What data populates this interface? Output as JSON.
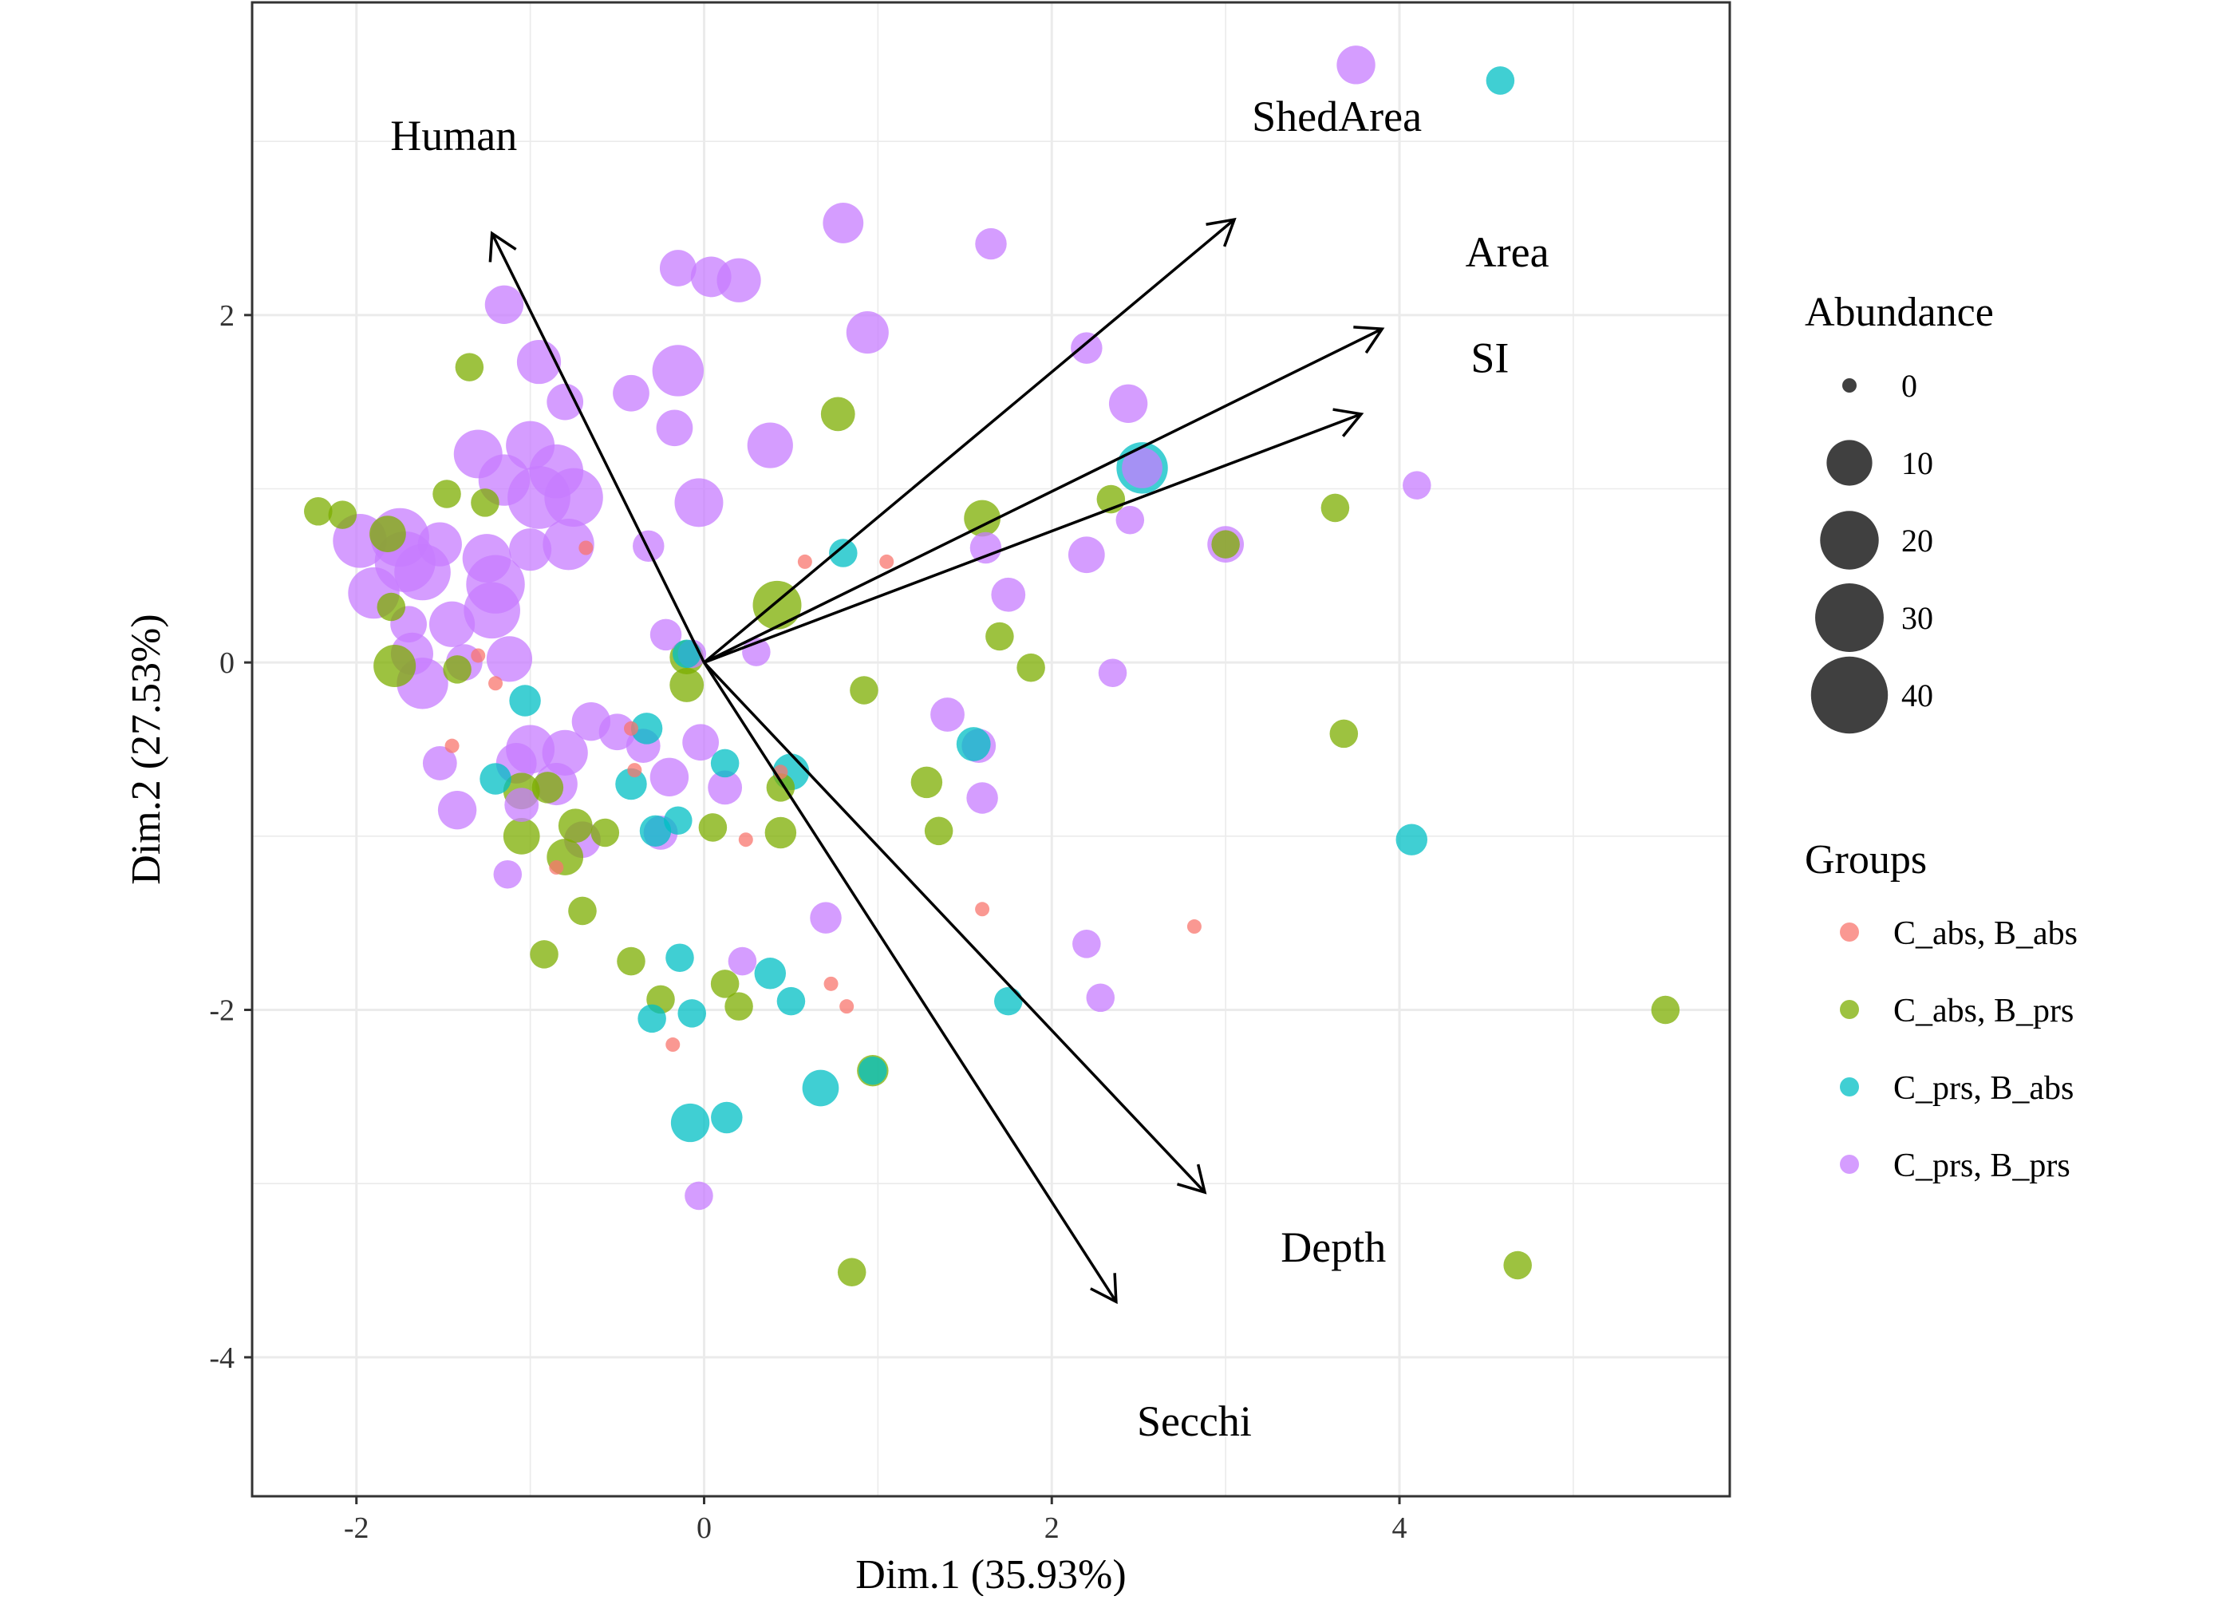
{
  "chart_data": {
    "type": "scatter",
    "subtype": "PCA biplot",
    "title": "",
    "xlabel": "Dim.1 (35.93%)",
    "ylabel": "Dim.2 (27.53%)",
    "xlim": [
      -2.6,
      5.9
    ],
    "ylim": [
      -4.8,
      3.8
    ],
    "x_ticks": [
      -2,
      0,
      2,
      4
    ],
    "y_ticks": [
      -4,
      -2,
      0,
      2
    ],
    "x_tick_labels": [
      "-2",
      "0",
      "2",
      "4"
    ],
    "y_tick_labels": [
      "-4",
      "-2",
      "0",
      "2"
    ],
    "grid": true,
    "legend_position": "right",
    "size_legend": {
      "title": "Abundance",
      "values": [
        0,
        10,
        20,
        30,
        40
      ],
      "labels": [
        "0",
        "10",
        "20",
        "30",
        "40"
      ]
    },
    "color_legend": {
      "title": "Groups",
      "groups": [
        {
          "name": "C_abs, B_abs",
          "color": "#F8766D"
        },
        {
          "name": "C_abs, B_prs",
          "color": "#7CAE00"
        },
        {
          "name": "C_prs, B_abs",
          "color": "#00BFC4"
        },
        {
          "name": "C_prs, B_prs",
          "color": "#C77CFF"
        }
      ]
    },
    "vectors": [
      {
        "label": "Human",
        "x": -1.22,
        "y": 2.47,
        "label_x": -1.44,
        "label_y": 2.95
      },
      {
        "label": "ShedArea",
        "x": 3.05,
        "y": 2.55,
        "label_x": 3.64,
        "label_y": 3.06
      },
      {
        "label": "Area",
        "x": 3.9,
        "y": 1.92,
        "label_x": 4.62,
        "label_y": 2.28
      },
      {
        "label": "SI",
        "x": 3.78,
        "y": 1.43,
        "label_x": 4.52,
        "label_y": 1.67
      },
      {
        "label": "Depth",
        "x": 2.88,
        "y": -3.05,
        "label_x": 3.62,
        "label_y": -3.45
      },
      {
        "label": "Secchi",
        "x": 2.37,
        "y": -3.68,
        "label_x": 2.82,
        "label_y": -4.45
      }
    ],
    "points": [
      [
        -1.98,
        0.7,
        3,
        16
      ],
      [
        -1.75,
        0.72,
        3,
        20
      ],
      [
        -1.72,
        0.58,
        3,
        22
      ],
      [
        -1.9,
        0.4,
        3,
        14
      ],
      [
        -1.62,
        0.52,
        3,
        18
      ],
      [
        -1.3,
        1.2,
        3,
        12
      ],
      [
        -1.15,
        1.05,
        3,
        14
      ],
      [
        -1.0,
        1.25,
        3,
        12
      ],
      [
        -0.95,
        0.95,
        3,
        24
      ],
      [
        -0.85,
        1.1,
        3,
        16
      ],
      [
        -0.75,
        0.95,
        3,
        20
      ],
      [
        -1.22,
        0.3,
        3,
        18
      ],
      [
        -1.2,
        0.45,
        3,
        20
      ],
      [
        -1.25,
        0.6,
        3,
        12
      ],
      [
        -1.0,
        0.65,
        3,
        8
      ],
      [
        -1.52,
        0.68,
        3,
        9
      ],
      [
        -0.78,
        0.68,
        3,
        14
      ],
      [
        -1.12,
        0.02,
        3,
        10
      ],
      [
        -1.62,
        -0.12,
        3,
        14
      ],
      [
        -1.68,
        0.05,
        3,
        8
      ],
      [
        -1.7,
        0.22,
        3,
        5
      ],
      [
        -1.15,
        2.06,
        3,
        6
      ],
      [
        -0.95,
        1.73,
        3,
        9
      ],
      [
        -0.8,
        1.5,
        3,
        5
      ],
      [
        -0.42,
        1.55,
        3,
        5
      ],
      [
        -0.15,
        1.68,
        3,
        14
      ],
      [
        -0.17,
        1.35,
        3,
        5
      ],
      [
        -0.03,
        0.92,
        3,
        12
      ],
      [
        -0.15,
        2.27,
        3,
        5
      ],
      [
        0.04,
        2.22,
        3,
        7
      ],
      [
        0.2,
        2.2,
        3,
        9
      ],
      [
        0.38,
        1.25,
        3,
        10
      ],
      [
        0.8,
        2.53,
        3,
        7
      ],
      [
        0.94,
        1.9,
        3,
        8
      ],
      [
        1.65,
        2.41,
        3,
        3
      ],
      [
        2.2,
        1.81,
        3,
        3
      ],
      [
        2.44,
        1.49,
        3,
        6
      ],
      [
        2.52,
        1.12,
        3,
        7
      ],
      [
        2.2,
        0.62,
        3,
        5
      ],
      [
        1.75,
        0.39,
        3,
        4
      ],
      [
        1.62,
        0.66,
        3,
        3
      ],
      [
        2.45,
        0.82,
        3,
        2
      ],
      [
        3.0,
        0.68,
        3,
        5
      ],
      [
        4.1,
        1.02,
        3,
        2
      ],
      [
        2.35,
        -0.06,
        3,
        2
      ],
      [
        1.4,
        -0.3,
        3,
        4
      ],
      [
        1.58,
        -0.48,
        3,
        4
      ],
      [
        1.6,
        -0.78,
        3,
        3
      ],
      [
        -0.07,
        0.05,
        3,
        2
      ],
      [
        0.3,
        0.06,
        3,
        2
      ],
      [
        -0.22,
        0.16,
        3,
        3
      ],
      [
        -0.32,
        0.67,
        3,
        3
      ],
      [
        -0.5,
        -0.4,
        3,
        5
      ],
      [
        -0.35,
        -0.48,
        3,
        4
      ],
      [
        -0.2,
        -0.66,
        3,
        6
      ],
      [
        -0.02,
        -0.46,
        3,
        5
      ],
      [
        0.12,
        -0.72,
        3,
        4
      ],
      [
        -0.8,
        -0.52,
        3,
        10
      ],
      [
        -1.0,
        -0.5,
        3,
        12
      ],
      [
        -0.85,
        -0.7,
        3,
        8
      ],
      [
        -0.7,
        -1.02,
        3,
        5
      ],
      [
        -1.08,
        -0.58,
        3,
        7
      ],
      [
        -1.42,
        -0.85,
        3,
        6
      ],
      [
        -1.52,
        -0.58,
        3,
        4
      ],
      [
        -1.05,
        -0.82,
        3,
        4
      ],
      [
        -1.13,
        -1.22,
        3,
        2
      ],
      [
        0.7,
        -1.47,
        3,
        3
      ],
      [
        0.22,
        -1.72,
        3,
        2
      ],
      [
        -0.25,
        -0.98,
        3,
        4
      ],
      [
        2.2,
        -1.62,
        3,
        2
      ],
      [
        2.28,
        -1.93,
        3,
        2
      ],
      [
        -0.03,
        -3.07,
        3,
        2
      ],
      [
        3.75,
        3.44,
        3,
        6
      ],
      [
        -1.45,
        0.22,
        3,
        10
      ],
      [
        -0.65,
        -0.34,
        3,
        6
      ],
      [
        -1.38,
        0.0,
        3,
        5
      ],
      [
        0.58,
        0.58,
        0,
        0
      ],
      [
        1.6,
        -1.42,
        0,
        0
      ],
      [
        -0.68,
        0.66,
        0,
        0
      ],
      [
        2.82,
        -1.52,
        0,
        0
      ],
      [
        -1.2,
        -0.12,
        0,
        0
      ],
      [
        -1.3,
        0.04,
        0,
        0
      ],
      [
        -0.42,
        -0.38,
        0,
        0
      ],
      [
        -0.85,
        -1.18,
        0,
        0
      ],
      [
        -0.18,
        -2.2,
        0,
        0
      ],
      [
        0.73,
        -1.85,
        0,
        0
      ],
      [
        0.82,
        -1.98,
        0,
        0
      ],
      [
        0.24,
        -1.02,
        0,
        0
      ],
      [
        0.44,
        -0.63,
        0,
        0
      ],
      [
        1.05,
        0.58,
        0,
        0
      ],
      [
        -1.45,
        -0.48,
        0,
        0
      ],
      [
        -0.4,
        -0.62,
        0,
        0
      ],
      [
        -2.22,
        0.87,
        1,
        2
      ],
      [
        -2.08,
        0.85,
        1,
        2
      ],
      [
        -1.35,
        1.7,
        1,
        2
      ],
      [
        -1.82,
        0.74,
        1,
        5
      ],
      [
        -1.48,
        0.97,
        1,
        2
      ],
      [
        -1.26,
        0.92,
        1,
        2
      ],
      [
        -1.8,
        0.32,
        1,
        2
      ],
      [
        -1.78,
        -0.02,
        1,
        8
      ],
      [
        -1.42,
        -0.04,
        1,
        2
      ],
      [
        -0.74,
        -0.94,
        1,
        4
      ],
      [
        -1.05,
        -0.74,
        1,
        5
      ],
      [
        -1.05,
        -1.0,
        1,
        5
      ],
      [
        -0.8,
        -1.12,
        1,
        5
      ],
      [
        -0.7,
        -1.43,
        1,
        2
      ],
      [
        -0.92,
        -1.68,
        1,
        2
      ],
      [
        -0.42,
        -1.72,
        1,
        2
      ],
      [
        -0.25,
        -1.94,
        1,
        2
      ],
      [
        0.12,
        -1.85,
        1,
        2
      ],
      [
        0.2,
        -1.98,
        1,
        2
      ],
      [
        0.05,
        -0.95,
        1,
        2
      ],
      [
        0.44,
        -0.98,
        1,
        3
      ],
      [
        0.44,
        -0.72,
        1,
        2
      ],
      [
        -0.1,
        -0.13,
        1,
        4
      ],
      [
        -0.1,
        0.03,
        1,
        4
      ],
      [
        0.42,
        0.33,
        1,
        12
      ],
      [
        0.77,
        1.43,
        1,
        4
      ],
      [
        1.6,
        0.83,
        1,
        5
      ],
      [
        1.7,
        0.15,
        1,
        2
      ],
      [
        2.34,
        0.94,
        1,
        2
      ],
      [
        3.63,
        0.89,
        1,
        2
      ],
      [
        3.68,
        -0.41,
        1,
        2
      ],
      [
        3.0,
        0.68,
        1,
        2
      ],
      [
        1.88,
        -0.03,
        1,
        2
      ],
      [
        1.35,
        -0.97,
        1,
        2
      ],
      [
        1.28,
        -0.69,
        1,
        3
      ],
      [
        0.92,
        -0.16,
        1,
        2
      ],
      [
        0.97,
        -2.35,
        1,
        3
      ],
      [
        0.85,
        -3.51,
        1,
        2
      ],
      [
        4.68,
        -3.47,
        1,
        2
      ],
      [
        5.53,
        -2.0,
        1,
        2
      ],
      [
        -0.9,
        -0.72,
        1,
        3
      ],
      [
        -0.57,
        -0.98,
        1,
        2
      ],
      [
        -1.2,
        -0.67,
        2,
        3
      ],
      [
        -1.03,
        -0.22,
        2,
        3
      ],
      [
        -0.33,
        -0.38,
        2,
        3
      ],
      [
        -0.28,
        -0.97,
        2,
        3
      ],
      [
        -0.42,
        -0.7,
        2,
        3
      ],
      [
        -0.15,
        -0.91,
        2,
        2
      ],
      [
        -0.14,
        -1.7,
        2,
        2
      ],
      [
        -0.3,
        -2.05,
        2,
        2
      ],
      [
        -0.07,
        -2.02,
        2,
        2
      ],
      [
        -0.08,
        -2.65,
        2,
        6
      ],
      [
        0.13,
        -2.62,
        2,
        3
      ],
      [
        0.38,
        -1.79,
        2,
        3
      ],
      [
        0.5,
        -1.95,
        2,
        2
      ],
      [
        0.67,
        -2.45,
        2,
        5
      ],
      [
        0.5,
        -0.63,
        2,
        5
      ],
      [
        0.12,
        -0.58,
        2,
        2
      ],
      [
        0.8,
        0.63,
        2,
        2
      ],
      [
        1.55,
        -0.47,
        2,
        4
      ],
      [
        2.52,
        1.12,
        2,
        14
      ],
      [
        1.75,
        -1.95,
        2,
        2
      ],
      [
        4.07,
        -1.02,
        2,
        3
      ],
      [
        0.97,
        -2.35,
        2,
        2
      ],
      [
        4.58,
        3.35,
        2,
        2
      ],
      [
        -0.1,
        0.05,
        2,
        2
      ]
    ]
  }
}
